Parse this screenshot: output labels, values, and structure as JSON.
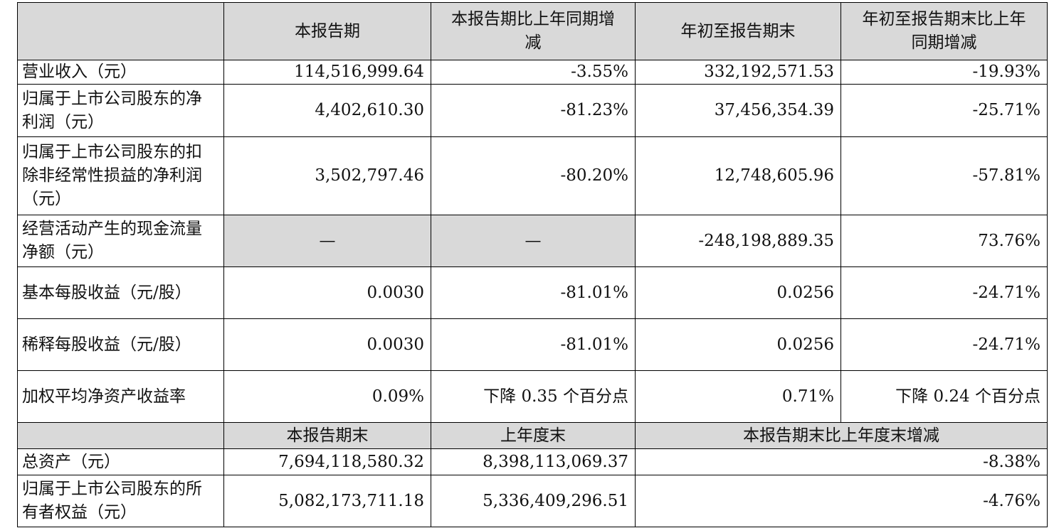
{
  "header": {
    "corner": "",
    "col1": "本报告期",
    "col2": "本报告期比上年同期增减",
    "col3": "年初至报告期末",
    "col4": "年初至报告期末比上年同期增减"
  },
  "rows": [
    {
      "label": "营业收入（元）",
      "v1": "114,516,999.64",
      "v2": "-3.55%",
      "v3": "332,192,571.53",
      "v4": "-19.93%"
    },
    {
      "label": "归属于上市公司股东的净利润（元）",
      "v1": "4,402,610.30",
      "v2": "-81.23%",
      "v3": "37,456,354.39",
      "v4": "-25.71%"
    },
    {
      "label": "归属于上市公司股东的扣除非经常性损益的净利润（元）",
      "v1": "3,502,797.46",
      "v2": "-80.20%",
      "v3": "12,748,605.96",
      "v4": "-57.81%"
    },
    {
      "label": "经营活动产生的现金流量净额（元）",
      "v1": "—",
      "v2": "—",
      "v3": "-248,198,889.35",
      "v4": "73.76%"
    },
    {
      "label": "基本每股收益（元/股）",
      "v1": "0.0030",
      "v2": "-81.01%",
      "v3": "0.0256",
      "v4": "-24.71%"
    },
    {
      "label": "稀释每股收益（元/股）",
      "v1": "0.0030",
      "v2": "-81.01%",
      "v3": "0.0256",
      "v4": "-24.71%"
    },
    {
      "label": "加权平均净资产收益率",
      "v1": "0.09%",
      "v2": "下降 0.35 个百分点",
      "v3": "0.71%",
      "v4": "下降 0.24 个百分点"
    }
  ],
  "header2": {
    "corner": "",
    "col1": "本报告期末",
    "col2": "上年度末",
    "col3": "本报告期末比上年度末增减"
  },
  "rows2": [
    {
      "label": "总资产（元）",
      "v1": "7,694,118,580.32",
      "v2": "8,398,113,069.37",
      "v3": "-8.38%"
    },
    {
      "label": "归属于上市公司股东的所有者权益（元）",
      "v1": "5,082,173,711.18",
      "v2": "5,336,409,296.51",
      "v3": "-4.76%"
    }
  ]
}
